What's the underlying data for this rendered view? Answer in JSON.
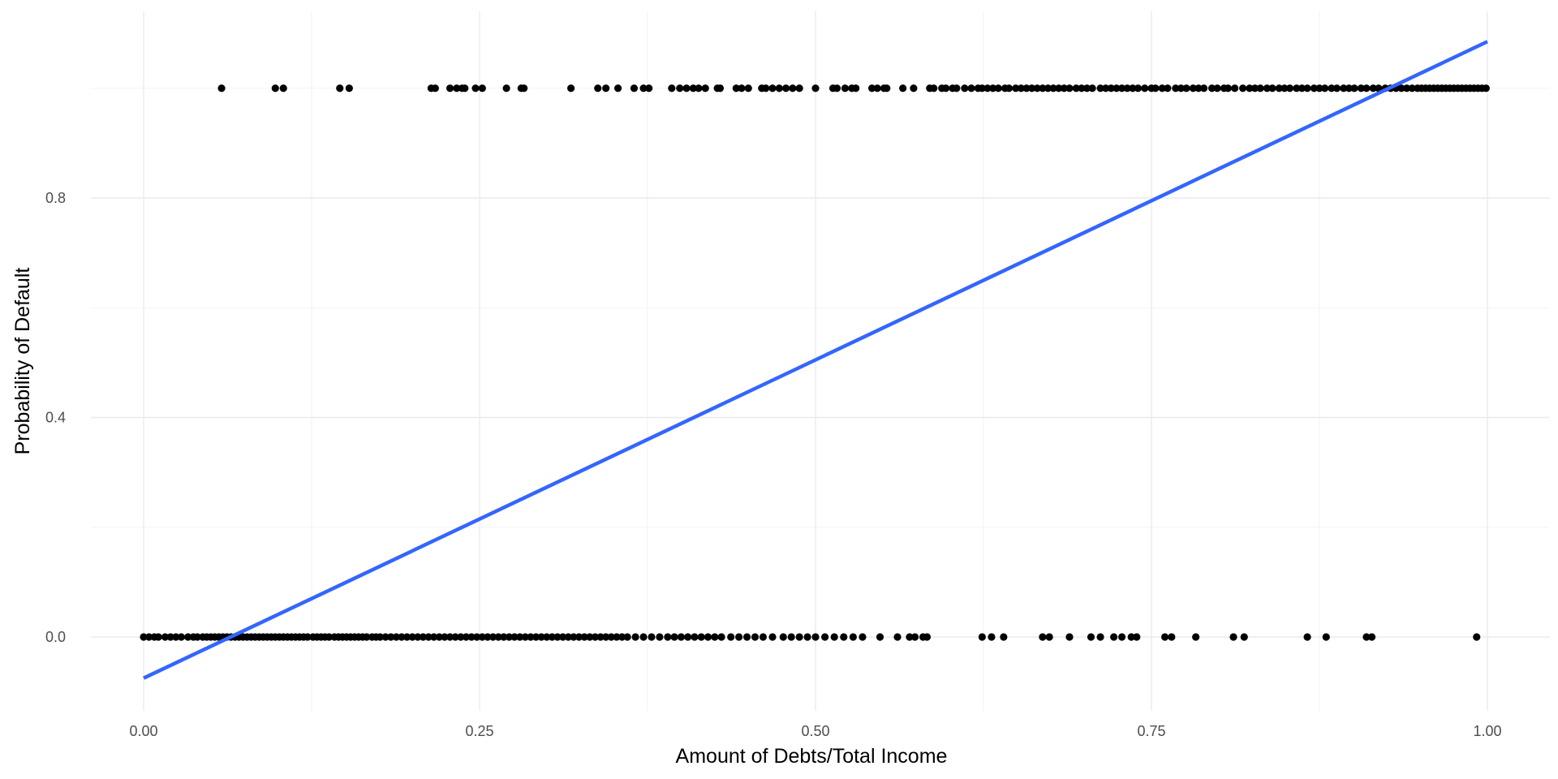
{
  "chart_data": {
    "type": "scatter",
    "title": "",
    "xlabel": "Amount of Debts/Total Income",
    "ylabel": "Probability of Default",
    "xlim": [
      -0.07,
      1.05
    ],
    "ylim": [
      -0.13,
      1.14
    ],
    "x_ticks": [
      0.0,
      0.25,
      0.5,
      0.75,
      1.0
    ],
    "x_tick_labels": [
      "0.00",
      "0.25",
      "0.50",
      "0.75",
      "1.00"
    ],
    "y_ticks": [
      0.0,
      0.4,
      0.8
    ],
    "y_tick_labels": [
      "0.0",
      "0.4",
      "0.8"
    ],
    "grid": true,
    "legend": "none",
    "colors": {
      "points": "#000000",
      "fit_line": "#3366ff",
      "grid": "#ebebeb"
    },
    "series": [
      {
        "kind": "points",
        "y": 1,
        "x": [
          0.058,
          0.098,
          0.104,
          0.146,
          0.153,
          0.214,
          0.217,
          0.228,
          0.233,
          0.237,
          0.239,
          0.247,
          0.252,
          0.27,
          0.281,
          0.283,
          0.318,
          0.338,
          0.344,
          0.353,
          0.365,
          0.372,
          0.376,
          0.393,
          0.399,
          0.404,
          0.409,
          0.413,
          0.418,
          0.427,
          0.429,
          0.441,
          0.445,
          0.45,
          0.46,
          0.463,
          0.468,
          0.473,
          0.478,
          0.483,
          0.488,
          0.5,
          0.513,
          0.516,
          0.522,
          0.527,
          0.53,
          0.542,
          0.546,
          0.551,
          0.553,
          0.565,
          0.573,
          0.585,
          0.588,
          0.594,
          0.597,
          0.602,
          0.605,
          0.611,
          0.616,
          0.621,
          0.624,
          0.628,
          0.632,
          0.636,
          0.641,
          0.644,
          0.649,
          0.653,
          0.657,
          0.661,
          0.665,
          0.669,
          0.673,
          0.677,
          0.681,
          0.685,
          0.689,
          0.694,
          0.698,
          0.702,
          0.706,
          0.712,
          0.716,
          0.72,
          0.724,
          0.728,
          0.732,
          0.736,
          0.74,
          0.745,
          0.75,
          0.753,
          0.758,
          0.762,
          0.768,
          0.772,
          0.776,
          0.781,
          0.785,
          0.789,
          0.795,
          0.799,
          0.804,
          0.807,
          0.812,
          0.818,
          0.823,
          0.827,
          0.831,
          0.836,
          0.84,
          0.845,
          0.849,
          0.853,
          0.858,
          0.862,
          0.866,
          0.871,
          0.875,
          0.879,
          0.884,
          0.888,
          0.893,
          0.897,
          0.901,
          0.906,
          0.91,
          0.915,
          0.919,
          0.924,
          0.928,
          0.932,
          0.936,
          0.94,
          0.944,
          0.948,
          0.951,
          0.954,
          0.957,
          0.96,
          0.963,
          0.966,
          0.969,
          0.972,
          0.975,
          0.978,
          0.981,
          0.984,
          0.987,
          0.99,
          0.993,
          0.996,
          0.999
        ]
      },
      {
        "kind": "points",
        "y": 0,
        "x": [
          0.0,
          0.004,
          0.008,
          0.011,
          0.016,
          0.02,
          0.024,
          0.028,
          0.033,
          0.037,
          0.04,
          0.044,
          0.047,
          0.05,
          0.053,
          0.056,
          0.059,
          0.062,
          0.065,
          0.068,
          0.071,
          0.074,
          0.077,
          0.08,
          0.083,
          0.086,
          0.089,
          0.092,
          0.095,
          0.098,
          0.101,
          0.104,
          0.107,
          0.11,
          0.113,
          0.116,
          0.119,
          0.122,
          0.126,
          0.129,
          0.132,
          0.135,
          0.138,
          0.142,
          0.145,
          0.148,
          0.151,
          0.154,
          0.157,
          0.16,
          0.163,
          0.166,
          0.17,
          0.173,
          0.176,
          0.18,
          0.184,
          0.188,
          0.192,
          0.196,
          0.2,
          0.204,
          0.208,
          0.212,
          0.216,
          0.22,
          0.224,
          0.228,
          0.232,
          0.236,
          0.24,
          0.244,
          0.248,
          0.252,
          0.256,
          0.26,
          0.264,
          0.268,
          0.272,
          0.276,
          0.28,
          0.284,
          0.288,
          0.292,
          0.296,
          0.3,
          0.304,
          0.308,
          0.312,
          0.316,
          0.32,
          0.324,
          0.328,
          0.332,
          0.336,
          0.34,
          0.344,
          0.348,
          0.352,
          0.356,
          0.36,
          0.366,
          0.372,
          0.378,
          0.384,
          0.39,
          0.395,
          0.4,
          0.405,
          0.41,
          0.415,
          0.42,
          0.425,
          0.43,
          0.437,
          0.443,
          0.449,
          0.455,
          0.461,
          0.468,
          0.476,
          0.482,
          0.488,
          0.494,
          0.5,
          0.507,
          0.514,
          0.521,
          0.528,
          0.535,
          0.548,
          0.561,
          0.57,
          0.574,
          0.58,
          0.583,
          0.624,
          0.631,
          0.64,
          0.669,
          0.674,
          0.689,
          0.705,
          0.712,
          0.722,
          0.728,
          0.735,
          0.739,
          0.76,
          0.765,
          0.783,
          0.811,
          0.819,
          0.866,
          0.88,
          0.91,
          0.914,
          0.992
        ]
      }
    ],
    "fit_line": {
      "kind": "linear",
      "x": [
        0.0,
        1.0
      ],
      "y": [
        -0.075,
        1.085
      ]
    }
  }
}
